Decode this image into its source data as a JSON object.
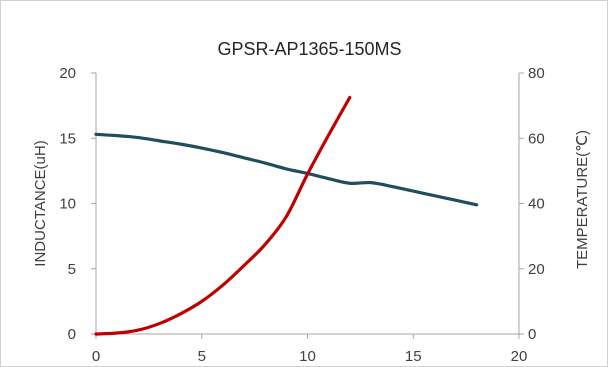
{
  "chart_data": {
    "type": "line",
    "title": "GPSR-AP1365-150MS",
    "xlabel": "",
    "ylabel": "INDUCTANCE(uH)",
    "y2label": "TEMPERATURE(℃)",
    "xlim": [
      0,
      20
    ],
    "ylim": [
      0,
      20
    ],
    "y2lim": [
      0,
      80
    ],
    "x_ticks": [
      0,
      5,
      10,
      15,
      20
    ],
    "y_ticks": [
      0,
      5,
      10,
      15,
      20
    ],
    "y2_ticks": [
      0,
      20,
      40,
      60,
      80
    ],
    "grid": false,
    "legend": "none",
    "series": [
      {
        "axis": "left",
        "color": "#1f4e5f",
        "x": [
          0,
          1,
          2,
          3,
          4,
          5,
          6,
          7,
          8,
          9,
          10,
          11,
          12,
          13,
          14,
          15,
          16,
          17,
          18
        ],
        "values": [
          15.3,
          15.2,
          15.05,
          14.8,
          14.55,
          14.25,
          13.9,
          13.5,
          13.1,
          12.65,
          12.3,
          11.9,
          11.55,
          11.6,
          11.3,
          10.95,
          10.6,
          10.25,
          9.9
        ]
      },
      {
        "axis": "right",
        "color": "#c00000",
        "x": [
          0,
          1,
          2,
          3,
          4,
          5,
          6,
          7,
          8,
          9,
          10,
          11,
          12
        ],
        "values": [
          0,
          0.3,
          1.2,
          3.2,
          6.2,
          10,
          15,
          21,
          27.5,
          36,
          49,
          61,
          72.5
        ]
      }
    ]
  }
}
